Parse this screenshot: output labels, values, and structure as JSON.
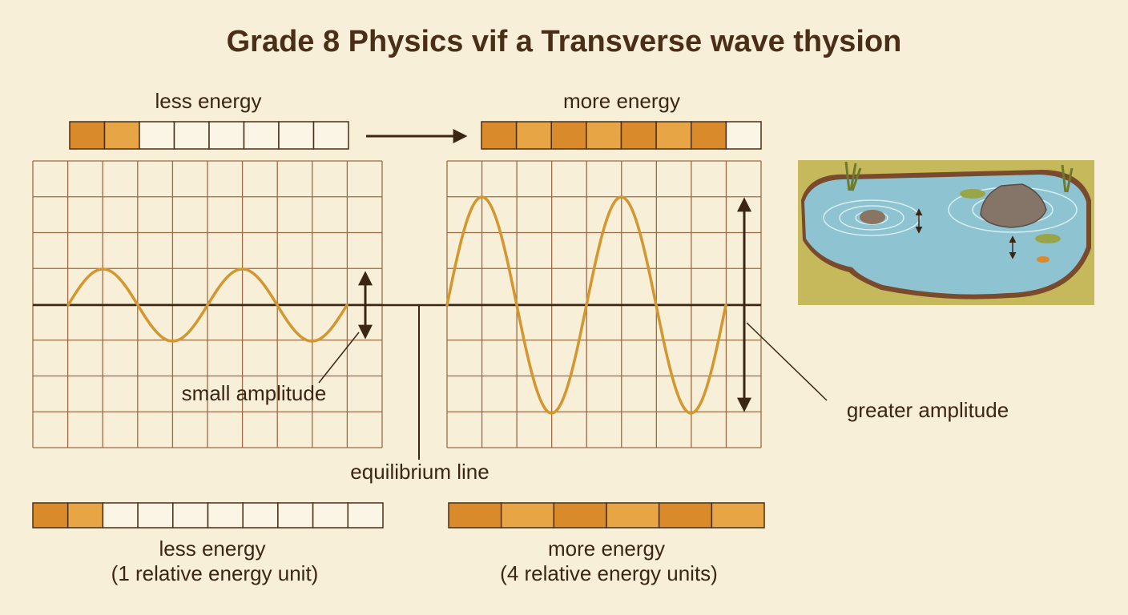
{
  "header": {
    "title": "Grade 8 Physics vif a Transverse wave thysion"
  },
  "top_labels": {
    "left": "less energy",
    "right": "more energy"
  },
  "annotations": {
    "small_amplitude": "small amplitude",
    "equilibrium_line": "equilibrium line",
    "greater_amplitude": "greater amplitude"
  },
  "bottom_labels": {
    "left": {
      "title": "less energy",
      "subtitle": "(1 relative energy unit)"
    },
    "right": {
      "title": "more energy",
      "subtitle": "(4 relative energy units)"
    }
  }
}
